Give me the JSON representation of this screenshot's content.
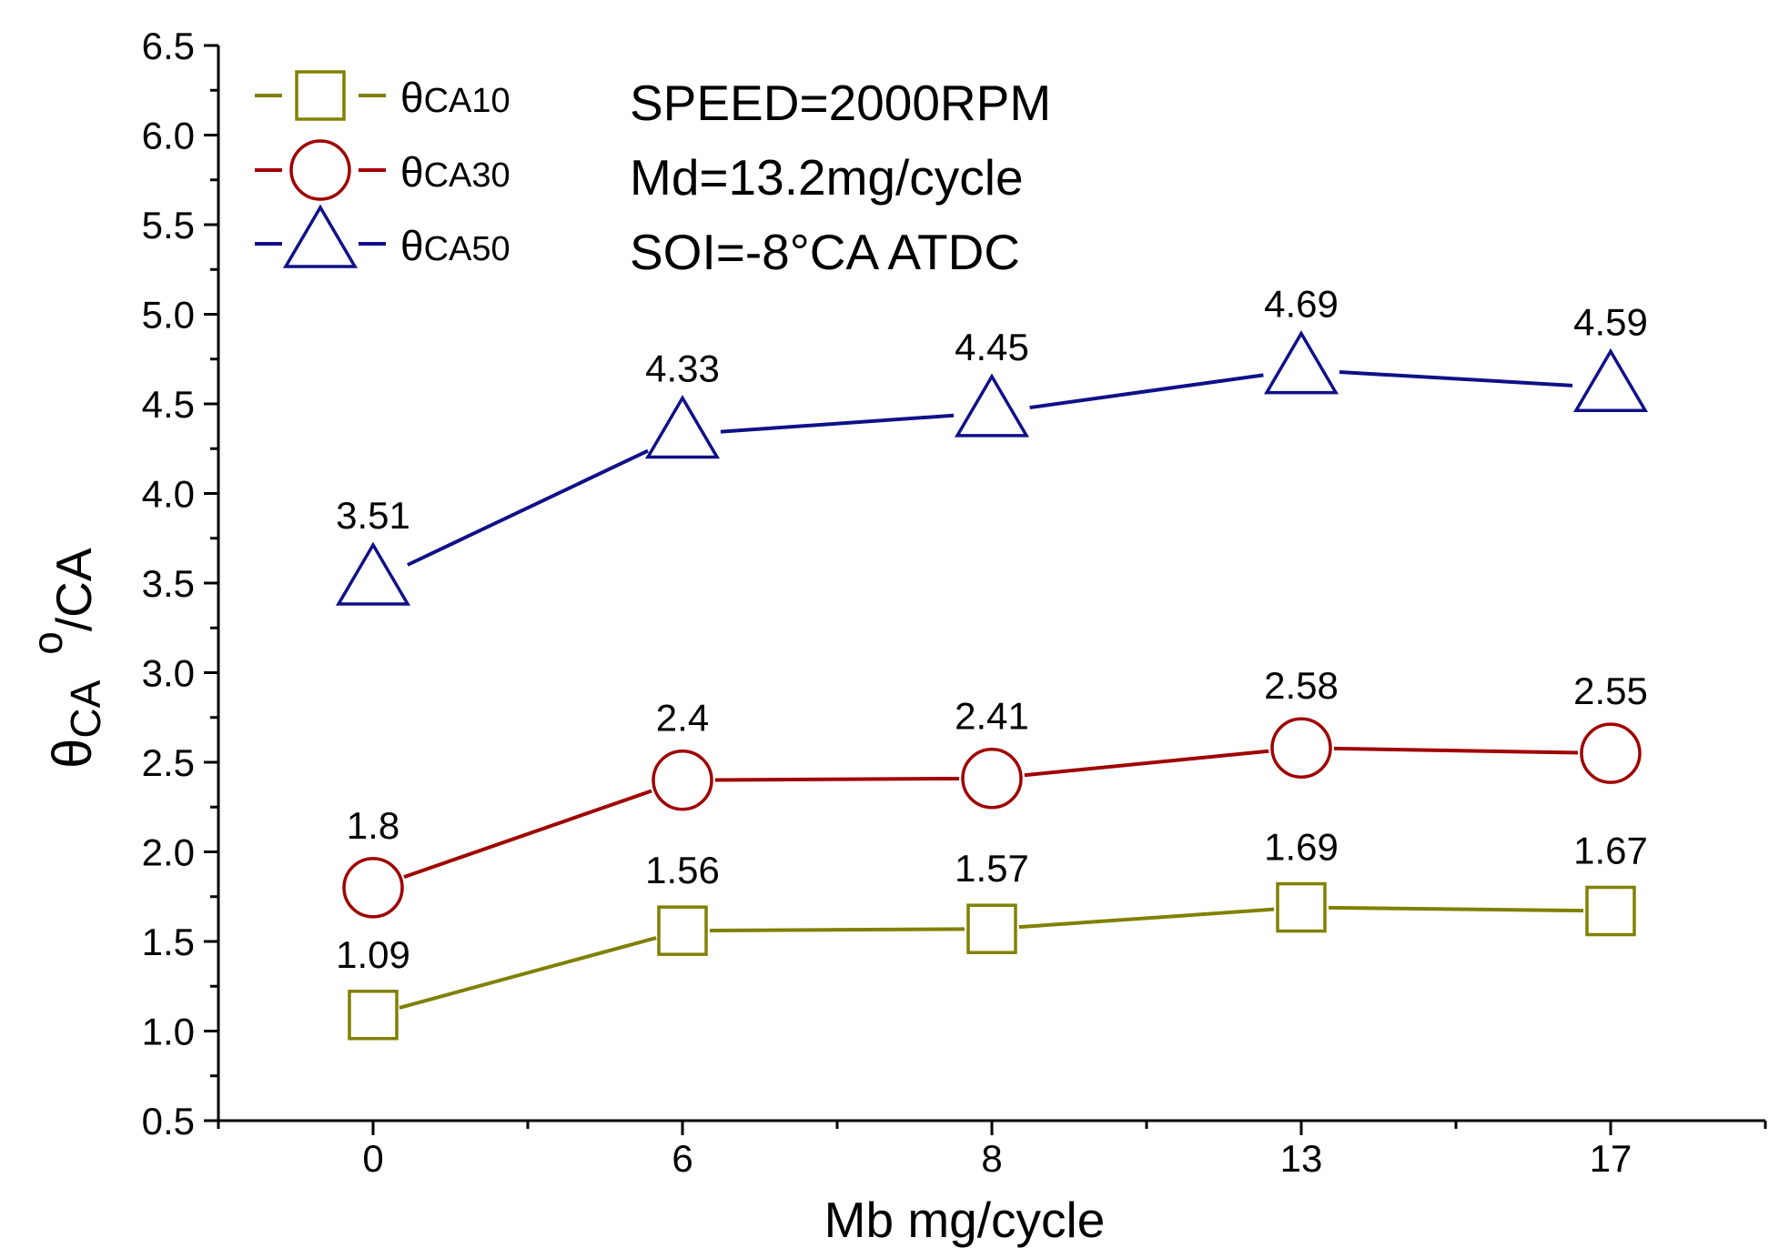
{
  "chart_data": {
    "type": "line",
    "categories": [
      "0",
      "6",
      "8",
      "13",
      "17"
    ],
    "ylim": [
      0.5,
      6.5
    ],
    "y_ticks": [
      "0.5",
      "1.0",
      "1.5",
      "2.0",
      "2.5",
      "3.0",
      "3.5",
      "4.0",
      "4.5",
      "5.0",
      "5.5",
      "6.0",
      "6.5"
    ],
    "xlabel": "Mb   mg/cycle",
    "ylabel": {
      "main": "θ",
      "sub": "CA",
      "sup": "o",
      "unit": "/CA"
    },
    "legend_position": "top-left",
    "grid": false,
    "annotations": [
      "SPEED=2000RPM",
      "Md=13.2mg/cycle",
      "SOI=-8°CA   ATDC"
    ],
    "series": [
      {
        "name": "θCA10",
        "name_main": "θ",
        "name_sub": "CA10",
        "marker": "square",
        "color": "#808000",
        "values": [
          1.09,
          1.56,
          1.57,
          1.69,
          1.67
        ],
        "labels": [
          "1.09",
          "1.56",
          "1.57",
          "1.69",
          "1.67"
        ]
      },
      {
        "name": "θCA30",
        "name_main": "θ",
        "name_sub": "CA30",
        "marker": "circle",
        "color": "#a00000",
        "values": [
          1.8,
          2.4,
          2.41,
          2.58,
          2.55
        ],
        "labels": [
          "1.8",
          "2.4",
          "2.41",
          "2.58",
          "2.55"
        ]
      },
      {
        "name": "θCA50",
        "name_main": "θ",
        "name_sub": "CA50",
        "marker": "triangle",
        "color": "#101088",
        "values": [
          3.51,
          4.33,
          4.45,
          4.69,
          4.59
        ],
        "labels": [
          "3.51",
          "4.33",
          "4.45",
          "4.69",
          "4.59"
        ]
      }
    ]
  }
}
